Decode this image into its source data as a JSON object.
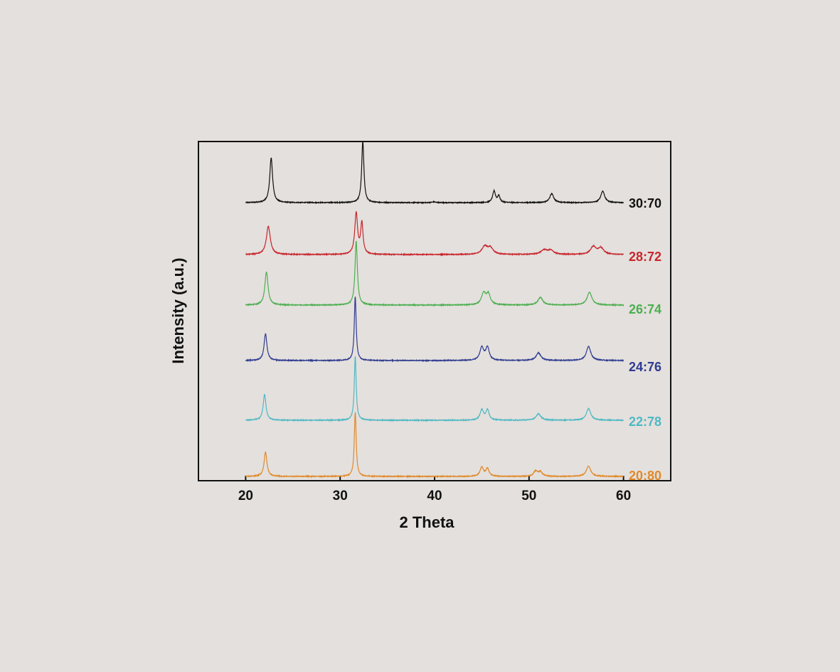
{
  "page": {
    "background": "#e4e0dd"
  },
  "chart_data": {
    "type": "line",
    "title": "",
    "xlabel": "2 Theta",
    "ylabel": "Intensity (a.u.)",
    "xlim": [
      15,
      65
    ],
    "x_ticks": [
      20,
      30,
      40,
      50,
      60
    ],
    "y_ticks": [],
    "y_axis_shown_as": "arbitrary units, stacked traces without numeric ticks",
    "x_data_range": [
      20,
      60
    ],
    "grid": false,
    "legend": "inline labels at right end of each trace",
    "series": [
      {
        "name": "30:70",
        "color": "#111111",
        "peaks": [
          {
            "x": 22.7,
            "height": 0.35,
            "width": 0.18
          },
          {
            "x": 32.4,
            "height": 0.48,
            "width": 0.14
          },
          {
            "x": 39.9,
            "height": 0.006,
            "width": 0.2
          },
          {
            "x": 46.3,
            "height": 0.09,
            "width": 0.18
          },
          {
            "x": 46.8,
            "height": 0.05,
            "width": 0.15
          },
          {
            "x": 52.4,
            "height": 0.07,
            "width": 0.25
          },
          {
            "x": 57.8,
            "height": 0.09,
            "width": 0.25
          }
        ]
      },
      {
        "name": "28:72",
        "color": "#c8262d",
        "peaks": [
          {
            "x": 22.4,
            "height": 0.22,
            "width": 0.25
          },
          {
            "x": 31.7,
            "height": 0.32,
            "width": 0.18
          },
          {
            "x": 32.3,
            "height": 0.24,
            "width": 0.15
          },
          {
            "x": 45.3,
            "height": 0.06,
            "width": 0.35
          },
          {
            "x": 45.9,
            "height": 0.05,
            "width": 0.35
          },
          {
            "x": 51.6,
            "height": 0.035,
            "width": 0.4
          },
          {
            "x": 52.3,
            "height": 0.03,
            "width": 0.35
          },
          {
            "x": 56.8,
            "height": 0.06,
            "width": 0.35
          },
          {
            "x": 57.6,
            "height": 0.05,
            "width": 0.35
          }
        ]
      },
      {
        "name": "26:74",
        "color": "#4caf50",
        "peaks": [
          {
            "x": 22.2,
            "height": 0.26,
            "width": 0.2
          },
          {
            "x": 31.7,
            "height": 0.5,
            "width": 0.15
          },
          {
            "x": 45.2,
            "height": 0.09,
            "width": 0.28
          },
          {
            "x": 45.7,
            "height": 0.08,
            "width": 0.25
          },
          {
            "x": 51.2,
            "height": 0.06,
            "width": 0.3
          },
          {
            "x": 56.4,
            "height": 0.1,
            "width": 0.3
          }
        ]
      },
      {
        "name": "24:76",
        "color": "#2e3b8f",
        "peaks": [
          {
            "x": 22.1,
            "height": 0.21,
            "width": 0.18
          },
          {
            "x": 31.6,
            "height": 0.5,
            "width": 0.12
          },
          {
            "x": 45.0,
            "height": 0.1,
            "width": 0.25
          },
          {
            "x": 45.6,
            "height": 0.1,
            "width": 0.22
          },
          {
            "x": 51.0,
            "height": 0.06,
            "width": 0.3
          },
          {
            "x": 56.3,
            "height": 0.11,
            "width": 0.28
          }
        ]
      },
      {
        "name": "22:78",
        "color": "#4fb8c3",
        "peaks": [
          {
            "x": 22.0,
            "height": 0.2,
            "width": 0.18
          },
          {
            "x": 31.6,
            "height": 0.5,
            "width": 0.12
          },
          {
            "x": 45.0,
            "height": 0.08,
            "width": 0.22
          },
          {
            "x": 45.6,
            "height": 0.08,
            "width": 0.2
          },
          {
            "x": 51.0,
            "height": 0.05,
            "width": 0.3
          },
          {
            "x": 56.3,
            "height": 0.09,
            "width": 0.28
          }
        ]
      },
      {
        "name": "20:80",
        "color": "#e08a2c",
        "peaks": [
          {
            "x": 22.1,
            "height": 0.19,
            "width": 0.18
          },
          {
            "x": 31.6,
            "height": 0.5,
            "width": 0.12
          },
          {
            "x": 45.0,
            "height": 0.07,
            "width": 0.22
          },
          {
            "x": 45.6,
            "height": 0.06,
            "width": 0.2
          },
          {
            "x": 50.7,
            "height": 0.04,
            "width": 0.25
          },
          {
            "x": 51.2,
            "height": 0.035,
            "width": 0.25
          },
          {
            "x": 56.3,
            "height": 0.08,
            "width": 0.28
          }
        ]
      }
    ]
  }
}
